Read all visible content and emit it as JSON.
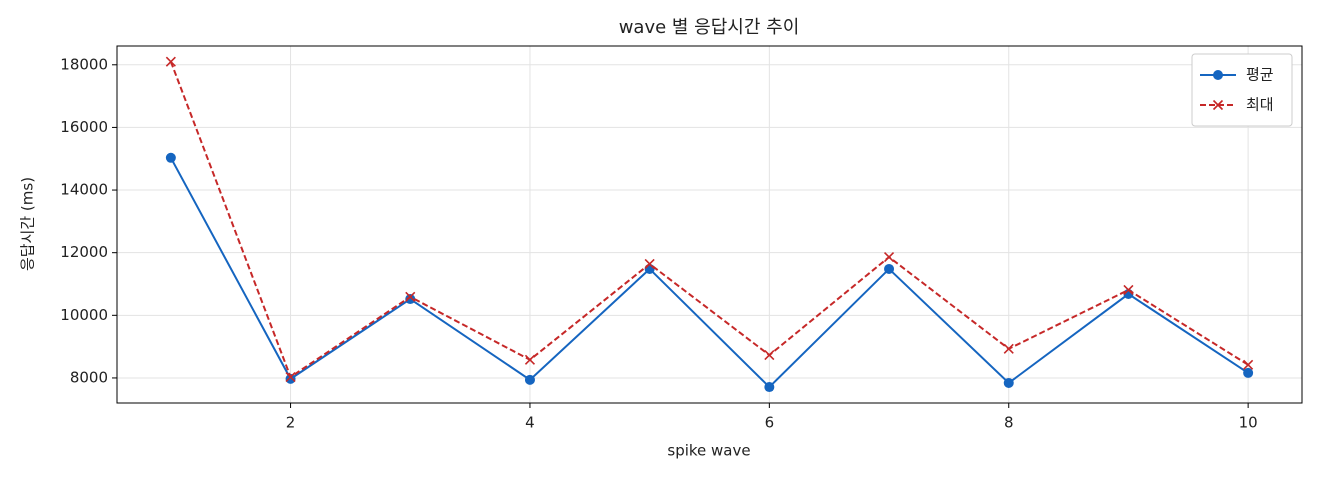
{
  "chart_data": {
    "type": "line",
    "title": "wave 별 응답시간 추이",
    "xlabel": "spike wave",
    "ylabel": "응답시간 (ms)",
    "x": [
      1,
      2,
      3,
      4,
      5,
      6,
      7,
      8,
      9,
      10
    ],
    "series": [
      {
        "name": "평균",
        "color": "#1565c0",
        "marker": "circle",
        "dashed": false,
        "values": [
          15030,
          7970,
          10520,
          7940,
          11480,
          7710,
          11480,
          7840,
          10680,
          8160
        ]
      },
      {
        "name": "최대",
        "color": "#c62828",
        "marker": "cross",
        "dashed": true,
        "values": [
          18100,
          8030,
          10590,
          8580,
          11640,
          8730,
          11860,
          8930,
          10810,
          8420
        ]
      }
    ],
    "xlim": [
      0.55,
      10.45
    ],
    "xticks": [
      2,
      4,
      6,
      8,
      10
    ],
    "ylim": [
      7200,
      18600
    ],
    "yticks": [
      8000,
      10000,
      12000,
      14000,
      16000,
      18000
    ],
    "grid": true,
    "legend": "upper right"
  }
}
